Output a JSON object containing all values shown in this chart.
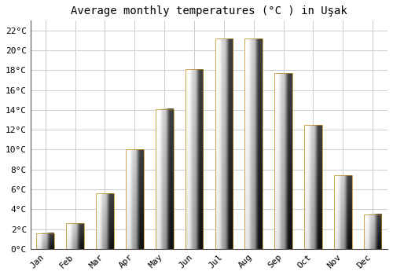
{
  "title": "Average monthly temperatures (°C ) in Uşak",
  "months": [
    "Jan",
    "Feb",
    "Mar",
    "Apr",
    "May",
    "Jun",
    "Jul",
    "Aug",
    "Sep",
    "Oct",
    "Nov",
    "Dec"
  ],
  "values": [
    1.6,
    2.6,
    5.6,
    10.0,
    14.1,
    18.1,
    21.2,
    21.2,
    17.7,
    12.5,
    7.4,
    3.5
  ],
  "bar_color_top": "#FFC107",
  "bar_color_bottom": "#F5A623",
  "bar_edge_color": "#B8860B",
  "ylim": [
    0,
    23
  ],
  "yticks": [
    0,
    2,
    4,
    6,
    8,
    10,
    12,
    14,
    16,
    18,
    20,
    22
  ],
  "ytick_labels": [
    "0°C",
    "2°C",
    "4°C",
    "6°C",
    "8°C",
    "10°C",
    "12°C",
    "14°C",
    "16°C",
    "18°C",
    "20°C",
    "22°C"
  ],
  "grid_color": "#cccccc",
  "background_color": "#ffffff",
  "plot_bg_color": "#ffffff",
  "title_fontsize": 10,
  "tick_fontsize": 8,
  "font_family": "monospace",
  "bar_width": 0.6,
  "bar_linewidth": 0.5
}
